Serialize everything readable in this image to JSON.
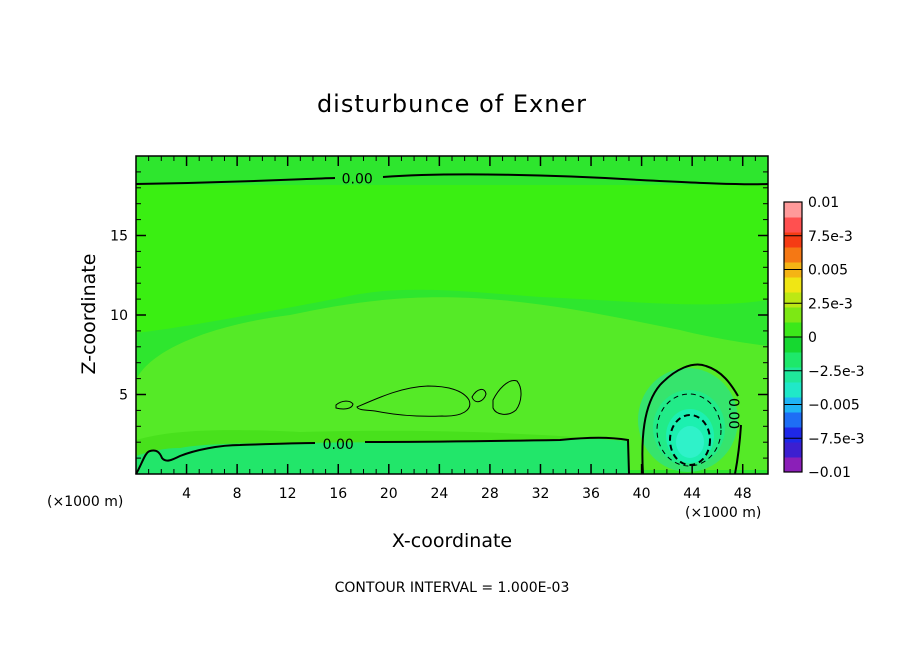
{
  "chart_data": {
    "type": "heatmap",
    "title": "disturbunce of Exner",
    "xlabel": "X-coordinate",
    "ylabel": "Z-coordinate",
    "x_unit_left": "(×1000 m)",
    "x_unit_right": "(×1000 m)",
    "footer": "CONTOUR INTERVAL = 1.000E-03",
    "xlim": [
      0,
      50
    ],
    "ylim": [
      0,
      20
    ],
    "x_ticks": [
      4,
      8,
      12,
      16,
      20,
      24,
      28,
      32,
      36,
      40,
      44,
      48
    ],
    "y_ticks": [
      5,
      10,
      15
    ],
    "contour_labels": [
      {
        "text": "0.00",
        "x": 17.5,
        "y": 18.6
      },
      {
        "text": "0.00",
        "x": 16.0,
        "y": 1.9
      },
      {
        "text": "0.00",
        "x": 47.3,
        "y": 3.8
      }
    ],
    "colorbar": {
      "labels": [
        "0.01",
        "7.5e-3",
        "0.005",
        "2.5e-3",
        "0",
        "−2.5e-3",
        "−0.005",
        "−7.5e-3",
        "−0.01"
      ],
      "range": [
        -0.01,
        0.01
      ],
      "colors": [
        "#8b1fb8",
        "#3c1fd0",
        "#1e28e8",
        "#1e6ef5",
        "#1fb4f5",
        "#20e8c8",
        "#1fe89b",
        "#1ee86a",
        "#16d830",
        "#3ce81a",
        "#7de814",
        "#bce814",
        "#f0e614",
        "#f5b414",
        "#f57814",
        "#f53c14",
        "#ff5050",
        "#ff9a9a"
      ]
    },
    "field": {
      "background": "#2ee62e",
      "upper_band": "#3aef12",
      "mid_zone": "#55ea27",
      "lower_band": "#48e11c",
      "surface_band": "#22e66a",
      "cell_colors": [
        "#36e46d",
        "#22eb88",
        "#1cf0b0",
        "#2ff2c9"
      ]
    }
  }
}
